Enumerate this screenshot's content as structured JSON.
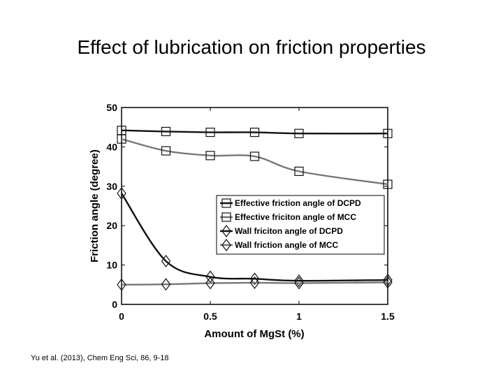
{
  "slide": {
    "title": "Effect of lubrication on friction properties",
    "citation": "Yu et al. (2013), Chem Eng Sci, 86, 9-18"
  },
  "chart_data": {
    "type": "line",
    "xlabel": "Amount of MgSt (%)",
    "ylabel": "Friction angle (degree)",
    "xlim": [
      0,
      1.5
    ],
    "ylim": [
      0,
      50
    ],
    "xticks": [
      0,
      0.5,
      1,
      1.5
    ],
    "xtick_labels": [
      "0",
      "0.5",
      "1",
      "1.5"
    ],
    "yticks": [
      0,
      10,
      20,
      30,
      40,
      50
    ],
    "ytick_labels": [
      "0",
      "10",
      "20",
      "30",
      "40",
      "50"
    ],
    "grid": false,
    "legend_position": "center-right",
    "series": [
      {
        "name": "Effective friction angle of DCPD",
        "marker": "square",
        "color": "#111111",
        "x": [
          0,
          0.25,
          0.5,
          0.75,
          1,
          1.5
        ],
        "y": [
          44.2,
          43.9,
          43.7,
          43.7,
          43.4,
          43.4
        ]
      },
      {
        "name": "Effective friciton angle of MCC",
        "marker": "square",
        "color": "#777777",
        "x": [
          0,
          0.25,
          0.5,
          0.75,
          1,
          1.5
        ],
        "y": [
          42,
          39,
          37.8,
          37.6,
          33.8,
          30.5
        ]
      },
      {
        "name": "Wall friciton angle of DCPD",
        "marker": "diamond",
        "color": "#111111",
        "x": [
          0,
          0.25,
          0.5,
          0.75,
          1,
          1.5
        ],
        "y": [
          28.2,
          11,
          7,
          6.5,
          6,
          6.2
        ]
      },
      {
        "name": "Wall friction angle of MCC",
        "marker": "diamond",
        "color": "#777777",
        "x": [
          0,
          0.25,
          0.5,
          0.75,
          1,
          1.5
        ],
        "y": [
          5,
          5.1,
          5.4,
          5.5,
          5.4,
          5.6
        ]
      }
    ]
  }
}
